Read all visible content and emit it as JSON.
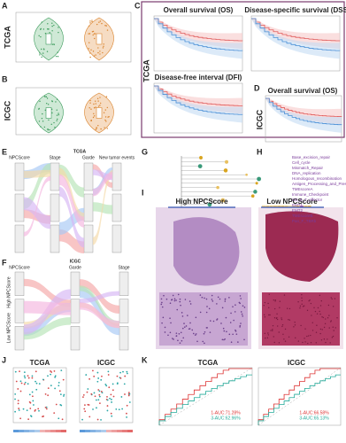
{
  "panel_a": {
    "letter": "A",
    "row_label": "TCGA"
  },
  "panel_b": {
    "letter": "B",
    "row_label": "ICGC"
  },
  "panel_c": {
    "letter": "C",
    "row_label": "TCGA",
    "titles": [
      "Overall survival (OS)",
      "Disease-specific survival (DSS)",
      "Disease-free interval (DFI)"
    ]
  },
  "panel_d": {
    "letter": "D",
    "row_label": "ICGC",
    "title": "Overall survival (OS)"
  },
  "panel_e": {
    "letter": "E",
    "title": "TCGA",
    "axes": [
      "NPCScore",
      "Stage",
      "Garde",
      "New tumor events"
    ]
  },
  "panel_f": {
    "letter": "F",
    "title": "ICGC",
    "axes": [
      "NPCScore",
      "Garde",
      "Stage"
    ],
    "groups": [
      "High NPCScore",
      "Low NPCScore"
    ]
  },
  "panel_g": {
    "letter": "G"
  },
  "panel_h": {
    "letter": "H",
    "pathways": [
      "Base_excision_repair",
      "Cell_cycle",
      "Mismatch_Repair",
      "DNA_replication",
      "Homologous_recombination",
      "Antigen_Processing_and_Presentation",
      "TMEscoreA",
      "Immune_Checkpoint",
      "CD_8_T_effector",
      "EMT1",
      "EMT2",
      "TMEscoreB",
      "Pan_F_TBRb"
    ]
  },
  "panel_i": {
    "letter": "I",
    "titles": [
      "High NPCScore",
      "Low NPCScore"
    ]
  },
  "panel_j": {
    "letter": "J",
    "titles": [
      "TCGA",
      "ICGC"
    ]
  },
  "panel_k": {
    "letter": "K",
    "titles": [
      "TCGA",
      "ICGC"
    ],
    "auc_tcga": [
      "1-AUC:71.28%",
      "3-AUC:62.96%"
    ],
    "auc_icgc": [
      "1-AUC:66.58%",
      "3-AUC:65.13%"
    ]
  }
}
